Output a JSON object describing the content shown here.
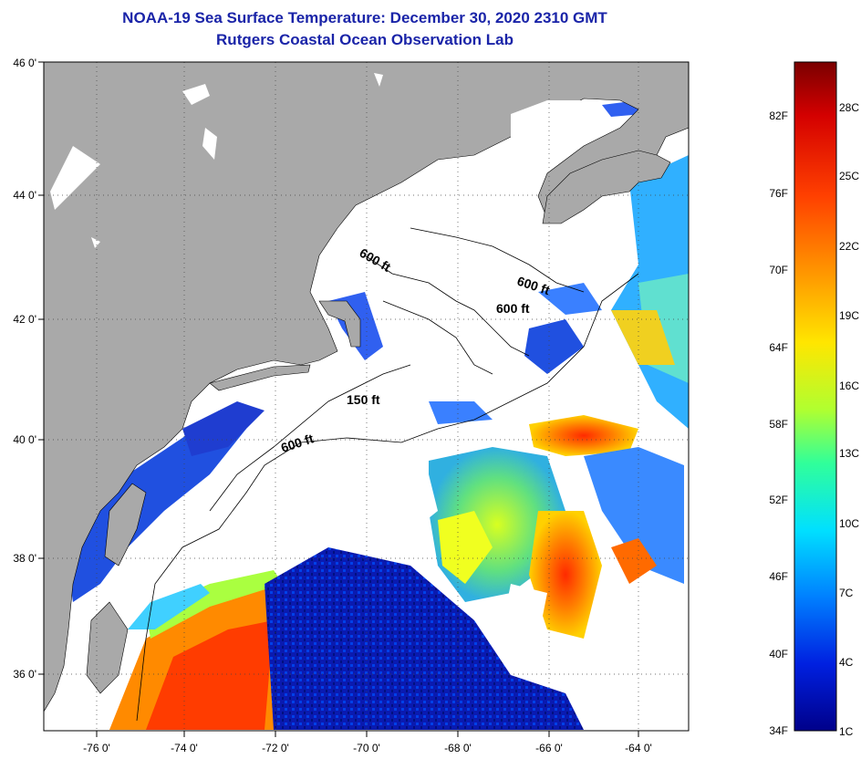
{
  "header": {
    "title": "NOAA-19 Sea Surface Temperature:  December 30, 2020 2310 GMT",
    "subtitle": "Rutgers Coastal Ocean Observation Lab"
  },
  "map": {
    "lat_ticks": [
      "46 0'",
      "44 0'",
      "42 0'",
      "40 0'",
      "38 0'",
      "36 0'"
    ],
    "lon_ticks": [
      "-76 0'",
      "-74 0'",
      "-72 0'",
      "-70 0'",
      "-68 0'",
      "-66 0'",
      "-64 0'"
    ],
    "contour_labels": [
      "600 ft",
      "600 ft",
      "600 ft",
      "150 ft",
      "600 ft"
    ],
    "colors": {
      "land": "#a9a9a9",
      "cloud": "#ffffff",
      "contour": "#000000",
      "graticule": "#444444"
    }
  },
  "colorbar": {
    "fahrenheit": [
      "82F",
      "76F",
      "70F",
      "64F",
      "58F",
      "52F",
      "46F",
      "40F",
      "34F"
    ],
    "celsius": [
      "28C",
      "25C",
      "22C",
      "19C",
      "16C",
      "13C",
      "10C",
      "7C",
      "4C",
      "1C"
    ],
    "gradient_colors": [
      "#7a0000",
      "#d40000",
      "#ff4000",
      "#ff9a00",
      "#ffe600",
      "#b0ff30",
      "#30ff9a",
      "#00e0ff",
      "#0080ff",
      "#0020e0",
      "#00008a"
    ]
  }
}
